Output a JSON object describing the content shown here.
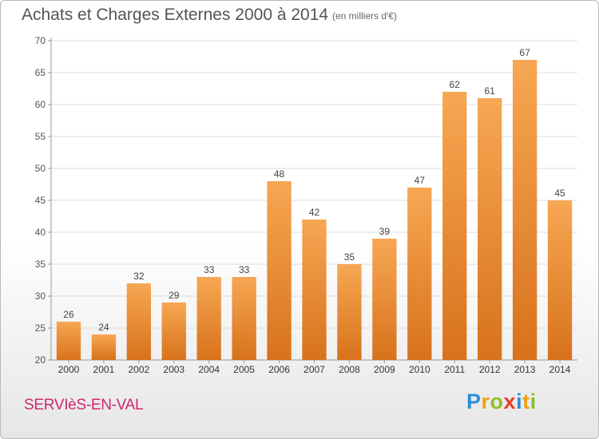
{
  "chart_data": {
    "type": "bar",
    "title": "Achats et Charges Externes 2000 à 2014",
    "subtitle": "(en milliers d'€)",
    "categories": [
      "2000",
      "2001",
      "2002",
      "2003",
      "2004",
      "2005",
      "2006",
      "2007",
      "2008",
      "2009",
      "2010",
      "2011",
      "2012",
      "2013",
      "2014"
    ],
    "values": [
      26,
      24,
      32,
      29,
      33,
      33,
      48,
      42,
      35,
      39,
      47,
      62,
      61,
      67,
      45
    ],
    "ylim": [
      20,
      70
    ],
    "yticks": [
      20,
      25,
      30,
      35,
      40,
      45,
      50,
      55,
      60,
      65,
      70
    ],
    "xlabel": "",
    "ylabel": "",
    "grid": true,
    "bar_color_top": "#f7a753",
    "bar_color_bottom": "#d8721c"
  },
  "footer": {
    "commune": "SERVIèS-EN-VAL",
    "logo_letters": [
      "P",
      "r",
      "o",
      "x",
      "i",
      "t",
      "i"
    ],
    "logo_colors": [
      "#2c8fd4",
      "#f0a216",
      "#8fbf28",
      "#e83c26",
      "#2c8fd4",
      "#f0a216",
      "#8fbf28"
    ]
  }
}
